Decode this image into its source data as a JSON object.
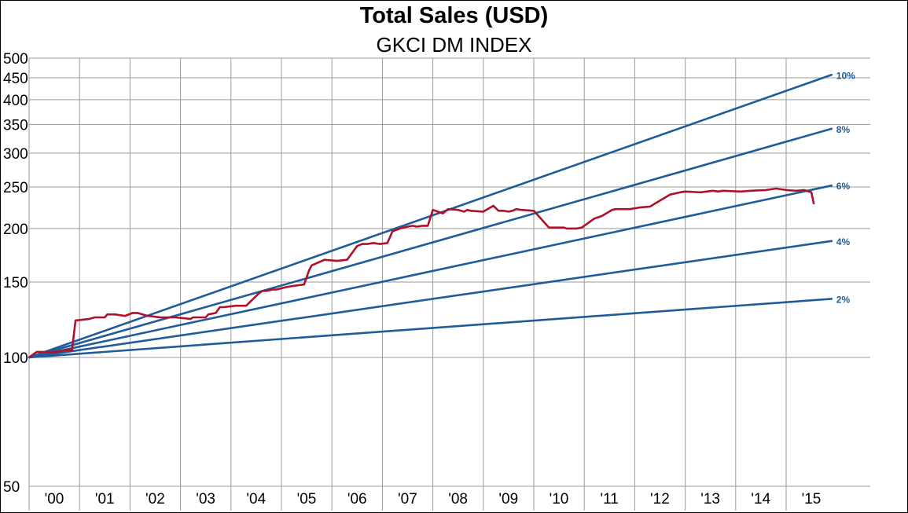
{
  "colors": {
    "reference": "#1f5c99",
    "index": "#b0112a",
    "grid": "#9a9a9a"
  },
  "chart_data": {
    "type": "line",
    "title": "Total Sales (USD)",
    "subtitle": "GKCI DM INDEX",
    "y_scale": "log",
    "ylim": [
      50,
      500
    ],
    "xlim": [
      2000.0,
      2016.0
    ],
    "grid": true,
    "y_ticks": [
      50,
      100,
      150,
      200,
      250,
      300,
      350,
      400,
      450,
      500
    ],
    "x_ticks": [
      {
        "year": 2000,
        "label": "'00"
      },
      {
        "year": 2001,
        "label": "'01"
      },
      {
        "year": 2002,
        "label": "'02"
      },
      {
        "year": 2003,
        "label": "'03"
      },
      {
        "year": 2004,
        "label": "'04"
      },
      {
        "year": 2005,
        "label": "'05"
      },
      {
        "year": 2006,
        "label": "'06"
      },
      {
        "year": 2007,
        "label": "'07"
      },
      {
        "year": 2008,
        "label": "'08"
      },
      {
        "year": 2009,
        "label": "'09"
      },
      {
        "year": 2010,
        "label": "'10"
      },
      {
        "year": 2011,
        "label": "'11"
      },
      {
        "year": 2012,
        "label": "'12"
      },
      {
        "year": 2013,
        "label": "'13"
      },
      {
        "year": 2014,
        "label": "'14"
      },
      {
        "year": 2015,
        "label": "'15"
      }
    ],
    "reference_lines": [
      {
        "label": "2%",
        "start": [
          2000.0,
          100
        ],
        "end": [
          2015.9,
          137
        ]
      },
      {
        "label": "4%",
        "start": [
          2000.0,
          100
        ],
        "end": [
          2015.9,
          187
        ]
      },
      {
        "label": "6%",
        "start": [
          2000.0,
          100
        ],
        "end": [
          2015.9,
          252
        ]
      },
      {
        "label": "8%",
        "start": [
          2000.0,
          100
        ],
        "end": [
          2015.9,
          342
        ]
      },
      {
        "label": "10%",
        "start": [
          2000.0,
          100
        ],
        "end": [
          2015.9,
          457
        ]
      }
    ],
    "series": [
      {
        "x": [
          2000.0,
          2000.15,
          2000.3,
          2000.55,
          2000.72,
          2000.85,
          2000.92,
          2001.2,
          2001.3,
          2001.5,
          2001.55,
          2001.7,
          2001.9,
          2002.05,
          2002.15,
          2002.35,
          2002.6,
          2002.9,
          2003.2,
          2003.25,
          2003.5,
          2003.55,
          2003.7,
          2003.78,
          2003.85,
          2004.1,
          2004.3,
          2004.55,
          2004.62,
          2004.7,
          2004.82,
          2004.9,
          2005.0,
          2005.1,
          2005.25,
          2005.45,
          2005.55,
          2005.6,
          2005.7,
          2005.85,
          2006.1,
          2006.3,
          2006.5,
          2006.6,
          2006.7,
          2006.82,
          2006.95,
          2007.1,
          2007.2,
          2007.35,
          2007.5,
          2007.6,
          2007.68,
          2007.8,
          2007.9,
          2008.0,
          2008.2,
          2008.3,
          2008.5,
          2008.62,
          2008.68,
          2008.75,
          2009.0,
          2009.2,
          2009.3,
          2009.4,
          2009.5,
          2009.58,
          2009.65,
          2009.75,
          2010.0,
          2010.3,
          2010.6,
          2010.65,
          2010.75,
          2010.85,
          2010.95,
          2011.2,
          2011.35,
          2011.55,
          2011.62,
          2011.72,
          2011.9,
          2012.1,
          2012.3,
          2012.7,
          2012.9,
          2013.0,
          2013.3,
          2013.55,
          2013.65,
          2013.75,
          2014.1,
          2014.3,
          2014.6,
          2014.8,
          2015.0,
          2015.2,
          2015.35,
          2015.45,
          2015.5,
          2015.55
        ],
        "y": [
          100,
          103,
          103,
          103,
          104,
          104,
          122,
          123,
          124,
          124,
          126,
          126,
          125,
          127,
          127,
          125,
          124,
          124,
          123,
          124,
          124,
          126,
          127,
          131,
          131,
          132,
          132,
          141,
          143,
          143,
          144,
          144,
          145,
          146,
          147,
          148,
          160,
          164,
          166,
          169,
          168,
          169,
          182,
          184,
          184,
          185,
          184,
          185,
          197,
          200,
          202,
          203,
          202,
          203,
          203,
          221,
          217,
          222,
          221,
          219,
          221,
          220,
          219,
          226,
          220,
          220,
          219,
          220,
          222,
          221,
          220,
          201,
          201,
          200,
          200,
          200,
          201,
          211,
          214,
          221,
          222,
          222,
          222,
          224,
          225,
          240,
          243,
          244,
          243,
          245,
          244,
          245,
          244,
          245,
          246,
          248,
          246,
          245,
          246,
          244,
          243,
          228
        ]
      }
    ]
  }
}
